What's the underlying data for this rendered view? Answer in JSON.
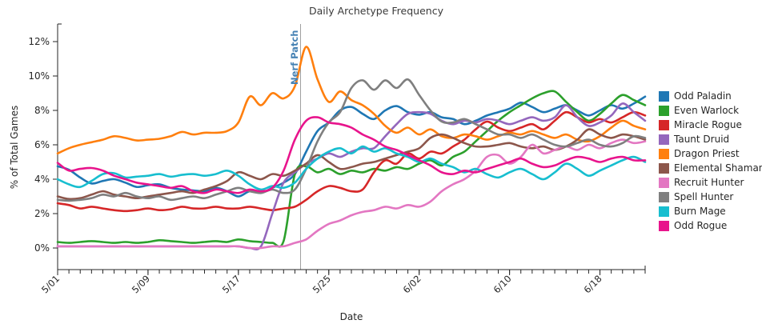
{
  "chart_data": {
    "type": "line",
    "title": "Daily Archetype Frequency",
    "xlabel": "Date",
    "ylabel": "% of Total Games",
    "ylim": [
      0,
      13
    ],
    "grid": false,
    "legend_position": "right",
    "y_ticks": {
      "values": [
        0,
        2,
        4,
        6,
        8,
        10,
        12
      ],
      "labels": [
        "0%",
        "2%",
        "4%",
        "6%",
        "8%",
        "10%",
        "12%"
      ]
    },
    "x_major_ticks": {
      "indices": [
        0,
        8,
        16,
        24,
        32,
        40,
        48
      ],
      "labels": [
        "5/01",
        "5/09",
        "5/17",
        "5/25",
        "6/02",
        "6/10",
        "6/18"
      ]
    },
    "annotation": {
      "text": "Nerf Patch",
      "x": "5/22",
      "x_index": 21.5,
      "text_color": "#4682b4",
      "line_color": "#9e9e9e"
    },
    "x": [
      "5/01",
      "5/02",
      "5/03",
      "5/04",
      "5/05",
      "5/06",
      "5/07",
      "5/08",
      "5/09",
      "5/10",
      "5/11",
      "5/12",
      "5/13",
      "5/14",
      "5/15",
      "5/16",
      "5/17",
      "5/18",
      "5/19",
      "5/20",
      "5/21",
      "5/22",
      "5/23",
      "5/24",
      "5/25",
      "5/26",
      "5/27",
      "5/28",
      "5/29",
      "5/30",
      "5/31",
      "6/01",
      "6/02",
      "6/03",
      "6/04",
      "6/05",
      "6/06",
      "6/07",
      "6/08",
      "6/09",
      "6/10",
      "6/11",
      "6/12",
      "6/13",
      "6/14",
      "6/15",
      "6/16",
      "6/17",
      "6/18",
      "6/19",
      "6/20",
      "6/21",
      "6/22"
    ],
    "series": [
      {
        "name": "Odd Paladin",
        "color": "#1f77b4",
        "values": [
          4.75,
          4.55,
          4.1,
          3.75,
          3.9,
          4.0,
          3.8,
          3.55,
          3.65,
          3.7,
          3.5,
          3.4,
          3.35,
          3.3,
          3.5,
          3.3,
          3.0,
          3.3,
          3.2,
          3.5,
          3.8,
          4.3,
          5.6,
          6.8,
          7.3,
          8.0,
          8.2,
          7.8,
          7.5,
          8.0,
          8.25,
          7.9,
          7.75,
          7.9,
          7.6,
          7.5,
          7.2,
          7.4,
          7.7,
          7.9,
          8.1,
          8.45,
          8.2,
          7.9,
          8.1,
          8.3,
          8.0,
          7.7,
          8.0,
          8.3,
          8.1,
          8.4,
          8.8
        ]
      },
      {
        "name": "Even Warlock",
        "color": "#2ca02c",
        "values": [
          0.35,
          0.3,
          0.35,
          0.4,
          0.35,
          0.3,
          0.35,
          0.3,
          0.35,
          0.45,
          0.4,
          0.35,
          0.3,
          0.35,
          0.4,
          0.35,
          0.5,
          0.4,
          0.35,
          0.3,
          0.4,
          4.3,
          4.75,
          4.4,
          4.6,
          4.3,
          4.5,
          4.4,
          4.6,
          4.5,
          4.7,
          4.6,
          4.9,
          5.1,
          4.8,
          5.3,
          5.6,
          6.2,
          6.8,
          7.4,
          7.9,
          8.3,
          8.7,
          9.0,
          9.1,
          8.5,
          7.9,
          7.4,
          7.8,
          8.4,
          8.9,
          8.6,
          8.3
        ]
      },
      {
        "name": "Miracle Rogue",
        "color": "#d62728",
        "values": [
          2.6,
          2.5,
          2.3,
          2.4,
          2.3,
          2.2,
          2.15,
          2.2,
          2.3,
          2.2,
          2.25,
          2.4,
          2.3,
          2.3,
          2.4,
          2.3,
          2.3,
          2.4,
          2.3,
          2.2,
          2.3,
          2.4,
          2.8,
          3.3,
          3.6,
          3.5,
          3.3,
          3.4,
          4.4,
          5.1,
          4.9,
          5.5,
          5.2,
          5.6,
          5.5,
          5.9,
          6.3,
          6.9,
          7.35,
          7.0,
          6.8,
          7.0,
          7.2,
          6.9,
          7.4,
          7.9,
          7.6,
          7.3,
          7.5,
          7.3,
          7.6,
          7.9,
          7.7
        ]
      },
      {
        "name": "Taunt Druid",
        "color": "#9467bd",
        "values": [
          0.1,
          0.1,
          0.1,
          0.1,
          0.1,
          0.1,
          0.1,
          0.1,
          0.1,
          0.1,
          0.1,
          0.1,
          0.1,
          0.1,
          0.1,
          0.1,
          0.1,
          0.0,
          0.1,
          2.0,
          3.8,
          4.4,
          4.9,
          5.2,
          5.5,
          5.3,
          5.6,
          5.8,
          5.8,
          6.5,
          7.2,
          7.8,
          7.9,
          7.8,
          7.4,
          7.2,
          7.4,
          7.3,
          7.5,
          7.4,
          7.2,
          7.4,
          7.6,
          7.4,
          7.6,
          8.3,
          7.6,
          7.1,
          7.3,
          7.7,
          8.4,
          7.9,
          7.4
        ]
      },
      {
        "name": "Dragon Priest",
        "color": "#ff7f0e",
        "values": [
          5.5,
          5.8,
          6.0,
          6.15,
          6.3,
          6.5,
          6.4,
          6.25,
          6.3,
          6.35,
          6.5,
          6.75,
          6.6,
          6.7,
          6.7,
          6.8,
          7.3,
          8.8,
          8.3,
          9.0,
          8.7,
          9.4,
          11.7,
          9.8,
          8.5,
          9.1,
          8.6,
          8.3,
          7.8,
          7.1,
          6.7,
          7.0,
          6.6,
          6.9,
          6.5,
          6.4,
          6.6,
          6.5,
          6.3,
          6.5,
          6.7,
          6.6,
          6.8,
          6.6,
          6.4,
          6.6,
          6.3,
          6.2,
          6.5,
          7.0,
          7.4,
          7.1,
          6.9
        ]
      },
      {
        "name": "Elemental Shaman",
        "color": "#8c564b",
        "values": [
          3.0,
          2.85,
          2.9,
          3.1,
          3.3,
          3.1,
          3.0,
          2.9,
          3.0,
          3.1,
          3.2,
          3.3,
          3.2,
          3.4,
          3.6,
          3.9,
          4.4,
          4.2,
          4.0,
          4.3,
          4.2,
          4.5,
          4.9,
          5.4,
          5.0,
          4.6,
          4.7,
          4.9,
          5.0,
          5.2,
          5.4,
          5.6,
          5.8,
          6.4,
          6.6,
          6.4,
          6.1,
          5.9,
          5.9,
          6.0,
          6.1,
          5.9,
          5.8,
          5.9,
          5.7,
          5.9,
          6.3,
          6.9,
          6.6,
          6.4,
          6.6,
          6.5,
          6.3
        ]
      },
      {
        "name": "Recruit Hunter",
        "color": "#e377c2",
        "values": [
          0.1,
          0.1,
          0.1,
          0.1,
          0.1,
          0.1,
          0.1,
          0.1,
          0.1,
          0.1,
          0.1,
          0.1,
          0.1,
          0.1,
          0.1,
          0.1,
          0.1,
          0.0,
          0.0,
          0.1,
          0.1,
          0.3,
          0.5,
          1.0,
          1.4,
          1.6,
          1.9,
          2.1,
          2.2,
          2.4,
          2.3,
          2.5,
          2.4,
          2.7,
          3.3,
          3.7,
          4.0,
          4.5,
          5.3,
          5.4,
          4.9,
          5.3,
          6.0,
          5.5,
          5.7,
          5.9,
          5.7,
          6.0,
          5.8,
          6.1,
          6.3,
          6.1,
          6.2
        ]
      },
      {
        "name": "Spell Hunter",
        "color": "#7f7f7f",
        "values": [
          2.8,
          2.75,
          2.8,
          2.9,
          3.1,
          3.0,
          3.2,
          3.0,
          2.9,
          3.0,
          2.8,
          2.9,
          3.0,
          2.9,
          3.1,
          3.3,
          3.5,
          3.3,
          3.2,
          3.4,
          3.2,
          3.4,
          4.6,
          6.2,
          7.3,
          7.9,
          9.3,
          9.75,
          9.2,
          9.75,
          9.3,
          9.8,
          8.9,
          8.0,
          7.35,
          7.3,
          7.5,
          7.2,
          6.9,
          6.6,
          6.6,
          6.4,
          6.6,
          6.3,
          6.0,
          5.9,
          6.1,
          6.3,
          6.0,
          5.9,
          6.1,
          6.5,
          6.4
        ]
      },
      {
        "name": "Burn Mage",
        "color": "#17becf",
        "values": [
          4.0,
          3.7,
          3.55,
          3.9,
          4.3,
          4.35,
          4.1,
          4.15,
          4.2,
          4.3,
          4.15,
          4.25,
          4.3,
          4.2,
          4.3,
          4.5,
          4.2,
          3.7,
          3.4,
          3.6,
          3.5,
          3.8,
          4.6,
          5.2,
          5.6,
          5.8,
          5.5,
          5.9,
          5.6,
          5.8,
          5.5,
          5.3,
          5.0,
          5.2,
          4.9,
          4.7,
          4.4,
          4.6,
          4.3,
          4.1,
          4.4,
          4.6,
          4.3,
          4.0,
          4.4,
          4.9,
          4.6,
          4.2,
          4.5,
          4.8,
          5.1,
          5.3,
          5.0
        ]
      },
      {
        "name": "Odd Rogue",
        "color": "#e8148c",
        "values": [
          4.95,
          4.5,
          4.6,
          4.65,
          4.5,
          4.2,
          4.0,
          3.8,
          3.7,
          3.6,
          3.5,
          3.6,
          3.3,
          3.2,
          3.4,
          3.3,
          3.2,
          3.4,
          3.3,
          3.5,
          4.5,
          6.3,
          7.4,
          7.6,
          7.3,
          7.2,
          7.0,
          6.6,
          6.3,
          5.9,
          5.7,
          5.4,
          5.1,
          4.8,
          4.4,
          4.3,
          4.5,
          4.4,
          4.6,
          4.8,
          5.0,
          5.2,
          4.9,
          4.7,
          4.8,
          5.1,
          5.3,
          5.2,
          5.0,
          5.2,
          5.3,
          5.1,
          5.1
        ]
      }
    ]
  }
}
